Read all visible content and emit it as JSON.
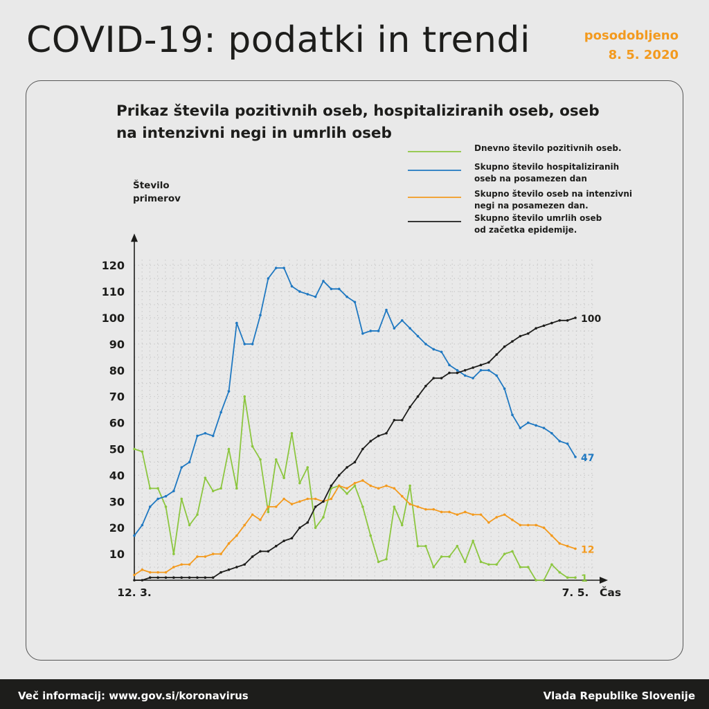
{
  "header": {
    "title": "COVID-19: podatki in trendi",
    "updated_line1": "posodobljeno",
    "updated_line2": "8. 5. 2020"
  },
  "footer": {
    "left": "Več informacij: www.gov.si/koronavirus",
    "right": "Vlada Republike Slovenije"
  },
  "colors": {
    "green": "#8cc63f",
    "blue": "#1f78c1",
    "orange": "#f39a1e",
    "black": "#1d1d1b"
  },
  "chart_data": {
    "type": "line",
    "title_line1": "Prikaz števila pozitivnih oseb, hospitaliziranih oseb, oseb",
    "title_line2": "na intenzivni negi in umrlih oseb",
    "ylabel_line1": "Število",
    "ylabel_line2": "primerov",
    "xlabel": "Čas",
    "x_start_label": "12. 3.",
    "x_end_label": "7. 5.",
    "ylim": [
      0,
      120
    ],
    "yticks": [
      10,
      20,
      30,
      40,
      50,
      60,
      70,
      80,
      90,
      100,
      110,
      120
    ],
    "grid": "dotted",
    "legend_position": "top-right",
    "series": [
      {
        "name": "Dnevno število pozitivnih oseb.",
        "color": "#8cc63f",
        "end_label": "1",
        "values": [
          50,
          49,
          35,
          35,
          28,
          10,
          31,
          21,
          25,
          39,
          34,
          35,
          50,
          35,
          70,
          51,
          46,
          26,
          46,
          39,
          56,
          37,
          43,
          20,
          24,
          35,
          36,
          33,
          36,
          28,
          17,
          7,
          8,
          28,
          21,
          36,
          13,
          13,
          5,
          9,
          9,
          13,
          7,
          15,
          7,
          6,
          6,
          10,
          11,
          5,
          5,
          0,
          0,
          6,
          3,
          1,
          1
        ]
      },
      {
        "name": "Skupno število hospitaliziranih oseb na posamezen dan",
        "name_line1": "Skupno število hospitaliziranih",
        "name_line2": "oseb na posamezen dan",
        "color": "#1f78c1",
        "end_label": "47",
        "values": [
          17,
          21,
          28,
          31,
          32,
          34,
          43,
          45,
          55,
          56,
          55,
          64,
          72,
          98,
          90,
          90,
          101,
          115,
          119,
          119,
          112,
          110,
          109,
          108,
          114,
          111,
          111,
          108,
          106,
          94,
          95,
          95,
          103,
          96,
          99,
          96,
          93,
          90,
          88,
          87,
          82,
          80,
          78,
          77,
          80,
          80,
          78,
          73,
          63,
          58,
          60,
          59,
          58,
          56,
          53,
          52,
          47
        ]
      },
      {
        "name": "Skupno število oseb na intenzivni negi na posamezen dan.",
        "name_line1": "Skupno število oseb na intenzivni",
        "name_line2": "negi na posamezen dan.",
        "color": "#f39a1e",
        "end_label": "12",
        "values": [
          2,
          4,
          3,
          3,
          3,
          5,
          6,
          6,
          9,
          9,
          10,
          10,
          14,
          17,
          21,
          25,
          23,
          28,
          28,
          31,
          29,
          30,
          31,
          31,
          30,
          31,
          36,
          35,
          37,
          38,
          36,
          35,
          36,
          35,
          32,
          29,
          28,
          27,
          27,
          26,
          26,
          25,
          26,
          25,
          25,
          22,
          24,
          25,
          23,
          21,
          21,
          21,
          20,
          17,
          14,
          13,
          12
        ]
      },
      {
        "name": "Skupno število umrlih oseb od začetka epidemije.",
        "name_line1": "Skupno število umrlih oseb",
        "name_line2": "od začetka epidemije.",
        "color": "#1d1d1b",
        "end_label": "100",
        "values": [
          0,
          0,
          1,
          1,
          1,
          1,
          1,
          1,
          1,
          1,
          1,
          3,
          4,
          5,
          6,
          9,
          11,
          11,
          13,
          15,
          16,
          20,
          22,
          28,
          30,
          36,
          40,
          43,
          45,
          50,
          53,
          55,
          56,
          61,
          61,
          66,
          70,
          74,
          77,
          77,
          79,
          79,
          80,
          81,
          82,
          83,
          86,
          89,
          91,
          93,
          94,
          96,
          97,
          98,
          99,
          99,
          100
        ]
      }
    ]
  }
}
